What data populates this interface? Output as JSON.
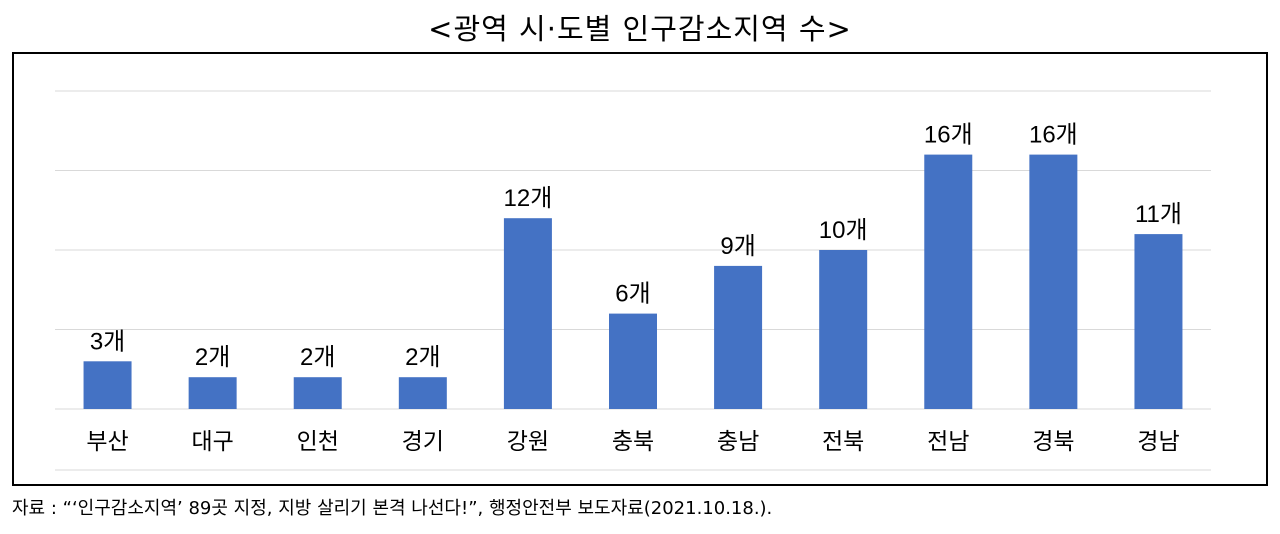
{
  "title": "<광역 시·도별 인구감소지역 수>",
  "source": "자료 : “‘인구감소지역’ 89곳 지정, 지방 살리기 본격 나선다!”, 행정안전부 보도자료(2021.10.18.).",
  "chart_data": {
    "type": "bar",
    "categories": [
      "부산",
      "대구",
      "인천",
      "경기",
      "강원",
      "충북",
      "충남",
      "전북",
      "전남",
      "경북",
      "경남"
    ],
    "values": [
      3,
      2,
      2,
      2,
      12,
      6,
      9,
      10,
      16,
      16,
      11
    ],
    "data_labels": [
      "3개",
      "2개",
      "2개",
      "2개",
      "12개",
      "6개",
      "9개",
      "10개",
      "16개",
      "16개",
      "11개"
    ],
    "ylim": [
      0,
      20
    ],
    "grid": true,
    "bar_color": "#4472C4",
    "gridline_color": "#d9d9d9"
  }
}
